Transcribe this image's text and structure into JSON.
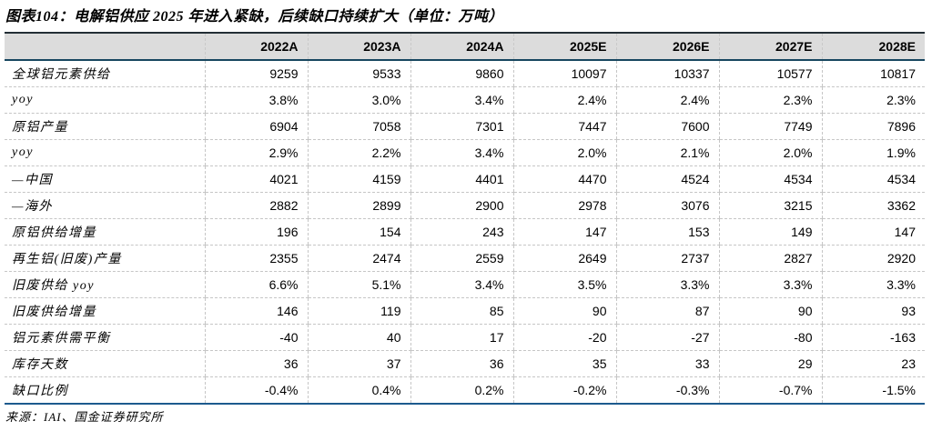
{
  "figure": {
    "title": "图表104：电解铝供应 2025 年进入紧缺，后续缺口持续扩大（单位：万吨）",
    "source": "来源：IAI、国金证券研究所"
  },
  "table": {
    "columns": [
      "",
      "2022A",
      "2023A",
      "2024A",
      "2025E",
      "2026E",
      "2027E",
      "2028E"
    ],
    "rows": [
      {
        "label": "全球铝元素供给",
        "values": [
          "9259",
          "9533",
          "9860",
          "10097",
          "10337",
          "10577",
          "10817"
        ]
      },
      {
        "label": "yoy",
        "values": [
          "3.8%",
          "3.0%",
          "3.4%",
          "2.4%",
          "2.4%",
          "2.3%",
          "2.3%"
        ]
      },
      {
        "label": "原铝产量",
        "values": [
          "6904",
          "7058",
          "7301",
          "7447",
          "7600",
          "7749",
          "7896"
        ]
      },
      {
        "label": "yoy",
        "values": [
          "2.9%",
          "2.2%",
          "3.4%",
          "2.0%",
          "2.1%",
          "2.0%",
          "1.9%"
        ]
      },
      {
        "label": "—中国",
        "values": [
          "4021",
          "4159",
          "4401",
          "4470",
          "4524",
          "4534",
          "4534"
        ]
      },
      {
        "label": "—海外",
        "values": [
          "2882",
          "2899",
          "2900",
          "2978",
          "3076",
          "3215",
          "3362"
        ]
      },
      {
        "label": "原铝供给增量",
        "values": [
          "196",
          "154",
          "243",
          "147",
          "153",
          "149",
          "147"
        ]
      },
      {
        "label": "再生铝(旧废)产量",
        "values": [
          "2355",
          "2474",
          "2559",
          "2649",
          "2737",
          "2827",
          "2920"
        ]
      },
      {
        "label": "旧废供给 yoy",
        "values": [
          "6.6%",
          "5.1%",
          "3.4%",
          "3.5%",
          "3.3%",
          "3.3%",
          "3.3%"
        ]
      },
      {
        "label": "旧废供给增量",
        "values": [
          "146",
          "119",
          "85",
          "90",
          "87",
          "90",
          "93"
        ]
      },
      {
        "label": "铝元素供需平衡",
        "values": [
          "-40",
          "40",
          "17",
          "-20",
          "-27",
          "-80",
          "-163"
        ]
      },
      {
        "label": "库存天数",
        "values": [
          "36",
          "37",
          "36",
          "35",
          "33",
          "29",
          "23"
        ]
      },
      {
        "label": "缺口比例",
        "values": [
          "-0.4%",
          "0.4%",
          "0.2%",
          "-0.2%",
          "-0.3%",
          "-0.7%",
          "-1.5%"
        ]
      }
    ]
  },
  "colors": {
    "header_bg": "#dcdcdc",
    "table_top_border": "#232e35",
    "header_underline": "#17465f",
    "table_bottom_border": "#1c5a8e",
    "grid_dashed": "#c6c6c6"
  }
}
